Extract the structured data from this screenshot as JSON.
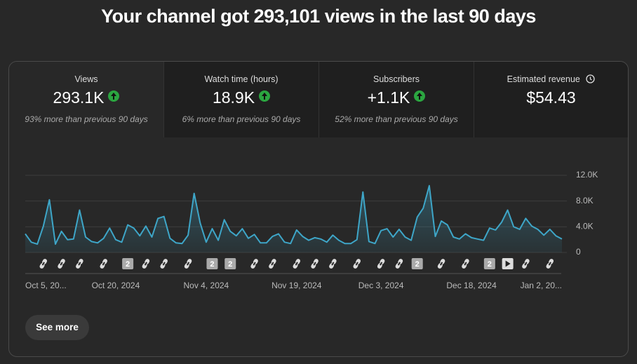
{
  "header": {
    "title": "Your channel got 293,101 views in the last 90 days"
  },
  "metrics": [
    {
      "label": "Views",
      "value": "293.1K",
      "change": "93% more than previous 90 days"
    },
    {
      "label": "Watch time (hours)",
      "value": "18.9K",
      "change": "6% more than previous 90 days"
    },
    {
      "label": "Subscribers",
      "value": "+1.1K",
      "change": "52% more than previous 90 days"
    },
    {
      "label": "Estimated revenue",
      "value": "$54.43"
    }
  ],
  "chart_data": {
    "type": "line",
    "color": "#3ea6c8",
    "grid": true,
    "categories": [
      "Oct 5, 20...",
      null,
      null,
      null,
      null,
      null,
      null,
      null,
      null,
      null,
      null,
      null,
      null,
      null,
      null,
      "Oct 20, 2024",
      null,
      null,
      null,
      null,
      null,
      null,
      null,
      null,
      null,
      null,
      null,
      null,
      null,
      null,
      "Nov 4, 2024",
      null,
      null,
      null,
      null,
      null,
      null,
      null,
      null,
      null,
      null,
      null,
      null,
      null,
      null,
      "Nov 19, 2024",
      null,
      null,
      null,
      null,
      null,
      null,
      null,
      null,
      null,
      null,
      null,
      null,
      null,
      "Dec 3, 2024",
      null,
      null,
      null,
      null,
      null,
      null,
      null,
      null,
      null,
      null,
      null,
      null,
      null,
      null,
      "Dec 18, 2024",
      null,
      null,
      null,
      null,
      null,
      null,
      null,
      null,
      null,
      null,
      null,
      null,
      null,
      null,
      "Jan 2, 20..."
    ],
    "values": [
      2900,
      1600,
      1300,
      4100,
      8200,
      1300,
      3300,
      2000,
      2100,
      6600,
      2400,
      1700,
      1500,
      2200,
      3800,
      2000,
      1600,
      4300,
      3800,
      2600,
      4100,
      2400,
      5300,
      5600,
      2200,
      1500,
      1400,
      2700,
      9200,
      4600,
      1600,
      3700,
      1900,
      5100,
      3300,
      2600,
      3700,
      2200,
      2800,
      1500,
      1500,
      2500,
      2900,
      1600,
      1400,
      3500,
      2500,
      1900,
      2300,
      2100,
      1600,
      2700,
      1900,
      1400,
      1400,
      2000,
      9400,
      1700,
      1400,
      3400,
      3700,
      2400,
      3600,
      2400,
      1900,
      5500,
      6900,
      10400,
      2500,
      4900,
      4300,
      2400,
      2100,
      2900,
      2300,
      2100,
      1900,
      3800,
      3500,
      4700,
      6600,
      4000,
      3600,
      5300,
      4100,
      3600,
      2700,
      3600,
      2600,
      2100
    ],
    "ylim": [
      0,
      12000
    ],
    "yticks": [
      0,
      {
        "value": 4000,
        "label": "4.0K"
      },
      {
        "value": 8000,
        "label": "8.0K"
      },
      {
        "value": 12000,
        "label": "12.0K"
      }
    ],
    "markers": [
      "2",
      "2",
      "2",
      "2",
      "2"
    ]
  },
  "button": {
    "label": "See more"
  }
}
